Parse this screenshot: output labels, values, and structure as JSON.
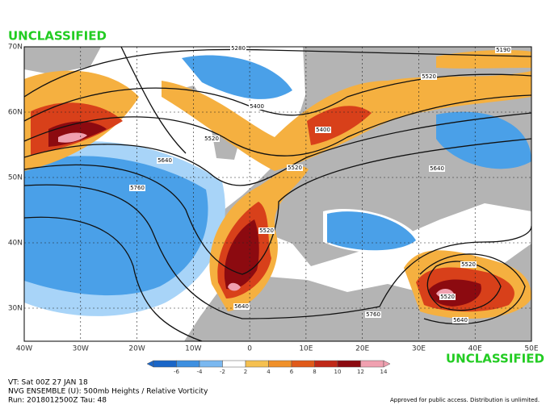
{
  "banner": {
    "top": "UNCLASSIFIED",
    "bottom": "UNCLASSIFIED"
  },
  "map": {
    "latitude_labels": [
      "70N",
      "60N",
      "50N",
      "40N",
      "30N"
    ],
    "longitude_labels": [
      "40W",
      "30W",
      "20W",
      "10W",
      "0",
      "10E",
      "20E",
      "30E",
      "40E",
      "50E"
    ],
    "contour_labels": [
      "5280",
      "5190",
      "5400",
      "5400",
      "5520",
      "5520",
      "5520",
      "5640",
      "5640",
      "5760",
      "5520",
      "5640",
      "5760",
      "5520",
      "5520",
      "5640"
    ]
  },
  "colorbar": {
    "labels": [
      "-6",
      "-4",
      "-2",
      "2",
      "4",
      "6",
      "8",
      "10",
      "12",
      "14"
    ]
  },
  "footer": {
    "valid_time": "VT: Sat 00Z 27 JAN 18",
    "product": "NVG ENSEMBLE (U): 500mb Heights / Relative Vorticity",
    "run": "Run: 2018012500Z Tau: 48",
    "distribution": "Approved for public access. Distribution is unlimited."
  }
}
